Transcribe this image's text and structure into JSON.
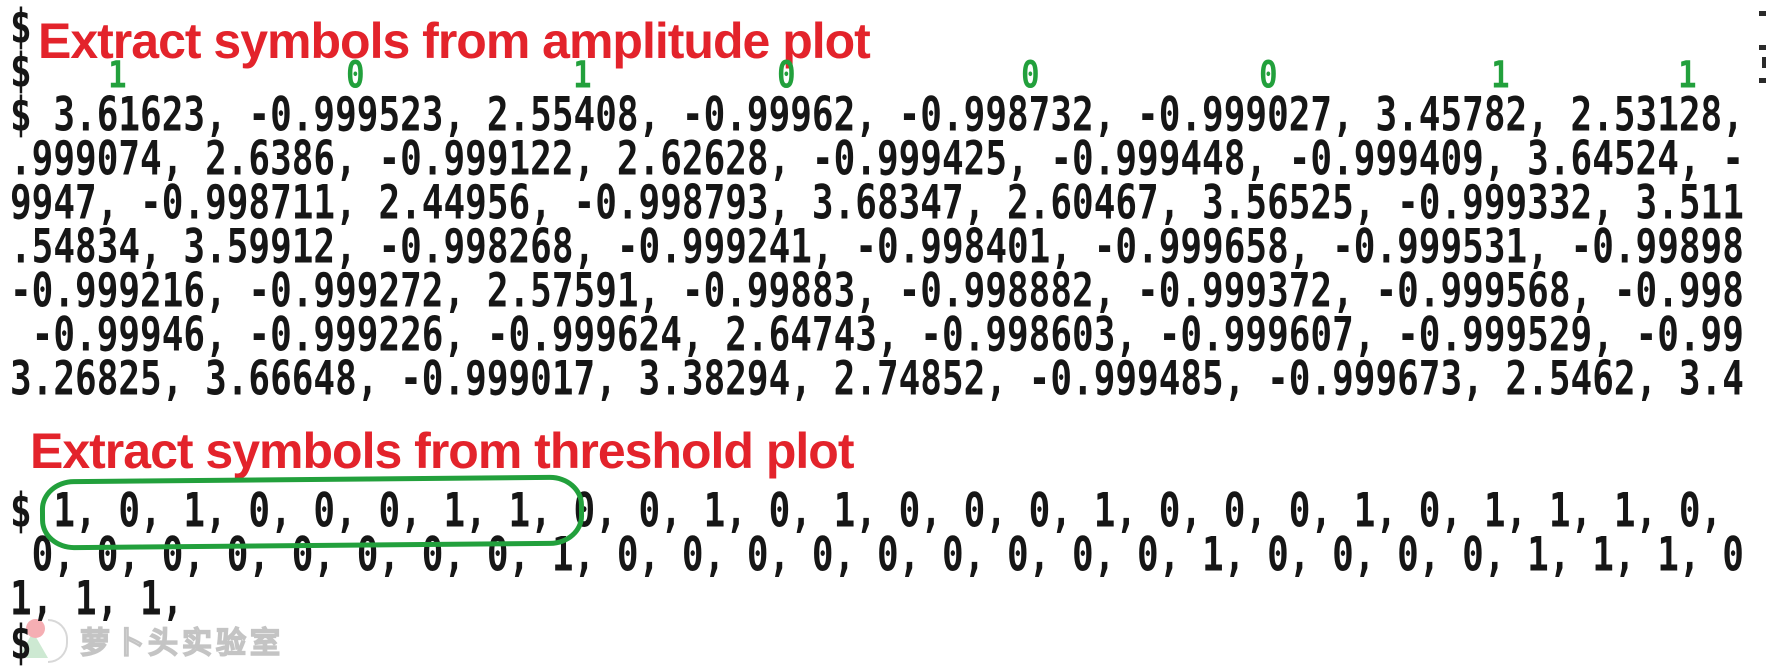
{
  "colors": {
    "background": "#ffffff",
    "console_text": "#161616",
    "annotation_red": "#e3232b",
    "annotation_green": "#22a03c",
    "watermark_gray": "#c4c4c4"
  },
  "terminal": {
    "prompt": "$",
    "amplitude_section": {
      "title": "Extract symbols from amplitude plot",
      "symbol_labels": [
        "1",
        "0",
        "1",
        "0",
        "0",
        "0",
        "1",
        "1"
      ],
      "lines": [
        "$ 3.61623, -0.999523, 2.55408, -0.99962, -0.998732, -0.999027, 3.45782, 2.53128,",
        ".999074, 2.6386, -0.999122, 2.62628, -0.999425, -0.999448, -0.999409, 3.64524, -",
        "9947, -0.998711, 2.44956, -0.998793, 3.68347, 2.60467, 3.56525, -0.999332, 3.511",
        ".54834, 3.59912, -0.998268, -0.999241, -0.998401, -0.999658, -0.999531, -0.99898",
        "-0.999216, -0.999272, 2.57591, -0.99883, -0.998882, -0.999372, -0.999568, -0.998",
        " -0.99946, -0.999226, -0.999624, 2.64743, -0.998603, -0.999607, -0.999529, -0.99",
        "3.26825, 3.66648, -0.999017, 3.38294, 2.74852, -0.999485, -0.999673, 2.5462, 3.4"
      ]
    },
    "threshold_section": {
      "title": "Extract symbols from threshold plot",
      "highlighted_symbols": "1, 0, 1, 0, 0, 0, 1, 1,",
      "lines": [
        "$ 1, 0, 1, 0, 0, 0, 1, 1, 0, 0, 1, 0, 1, 0, 0, 0, 1, 0, 0, 0, 1, 0, 1, 1, 1, 0,",
        " 0, 0, 0, 0, 0, 0, 0, 0, 1, 0, 0, 0, 0, 0, 0, 0, 0, 0, 1, 0, 0, 0, 0, 1, 1, 1, 0",
        "1, 1, 1,"
      ]
    }
  },
  "watermark": {
    "logo": "radish-logo",
    "text": "萝卜头实验室"
  }
}
